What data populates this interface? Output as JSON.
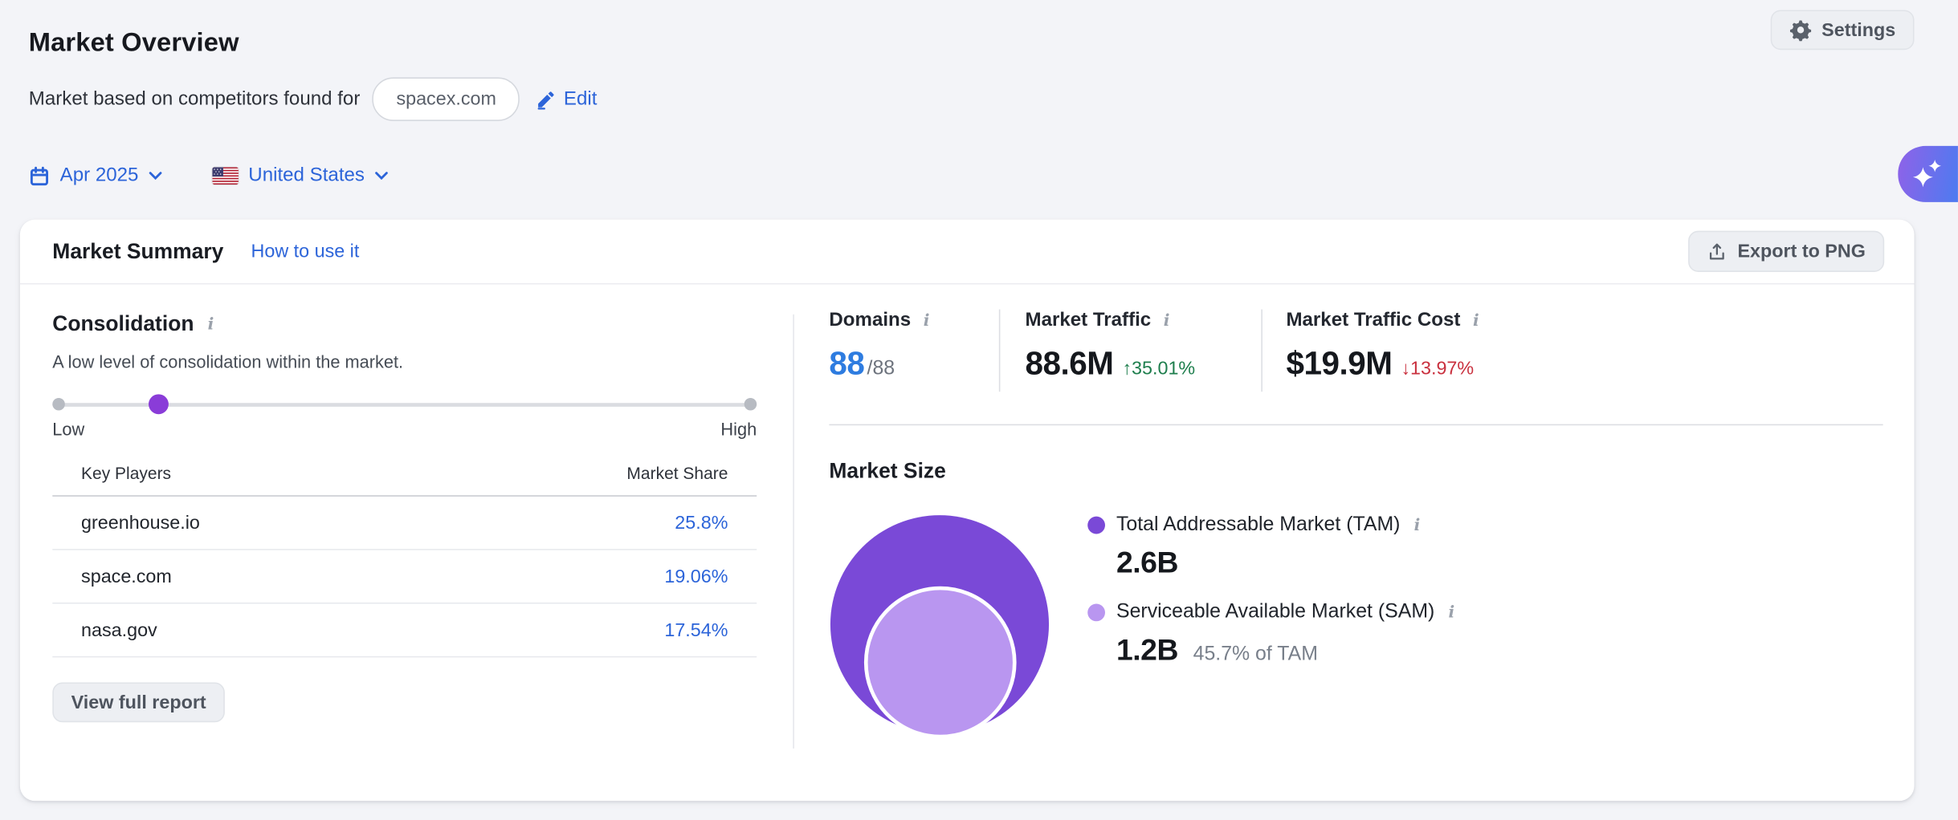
{
  "colors": {
    "link_blue": "#2c64d9",
    "value_blue": "#2e7ce0",
    "positive_green": "#1e7e4d",
    "negative_red": "#c9303e",
    "tam_purple": "#7a49d7",
    "sam_purple": "#b996f0",
    "slider_purple": "#8a3cd8",
    "ai_gradient_start": "#8f62e8",
    "ai_gradient_end": "#4d7bf0"
  },
  "header": {
    "title": "Market Overview",
    "settings_button": "Settings",
    "subtitle": "Market based on competitors found for",
    "domain_pill": "spacex.com",
    "edit_link": "Edit"
  },
  "filters": {
    "date": "Apr 2025",
    "country": "United States"
  },
  "summary_card": {
    "title": "Market Summary",
    "help_link": "How to use it",
    "export_button": "Export to PNG"
  },
  "consolidation": {
    "title": "Consolidation",
    "description": "A low level of consolidation within the market.",
    "low": "Low",
    "high": "High",
    "slider_pct": 15
  },
  "key_players": {
    "columns": {
      "player": "Key Players",
      "share": "Market Share"
    },
    "rows": [
      {
        "player": "greenhouse.io",
        "share": "25.8%"
      },
      {
        "player": "space.com",
        "share": "19.06%"
      },
      {
        "player": "nasa.gov",
        "share": "17.54%"
      }
    ],
    "view_full_report": "View full report"
  },
  "metrics": {
    "domains": {
      "label": "Domains",
      "value": "88",
      "total": "/88"
    },
    "traffic": {
      "label": "Market Traffic",
      "value": "88.6M",
      "change": "↑35.01%"
    },
    "cost": {
      "label": "Market Traffic Cost",
      "value": "$19.9M",
      "change": "↓13.97%"
    }
  },
  "market_size": {
    "title": "Market Size",
    "tam": {
      "label": "Total Addressable Market (TAM)",
      "value": "2.6B"
    },
    "sam": {
      "label": "Serviceable Available Market (SAM)",
      "value": "1.2B",
      "share_of_tam": "45.7% of TAM"
    }
  },
  "chart_data": {
    "type": "bubble",
    "title": "Market Size",
    "series": [
      {
        "name": "Total Addressable Market (TAM)",
        "value_label": "2.6B",
        "value": 2600000000
      },
      {
        "name": "Serviceable Available Market (SAM)",
        "value_label": "1.2B",
        "value": 1200000000,
        "percent_of_tam": 45.7
      }
    ],
    "consolidation_level": "low",
    "key_players_market_share_pct": {
      "greenhouse.io": 25.8,
      "space.com": 19.06,
      "nasa.gov": 17.54
    },
    "domains": {
      "shown": 88,
      "total": 88
    },
    "market_traffic": {
      "value": "88.6M",
      "change_pct": 35.01,
      "direction": "up"
    },
    "market_traffic_cost": {
      "value": "$19.9M",
      "change_pct": -13.97,
      "direction": "down"
    }
  }
}
